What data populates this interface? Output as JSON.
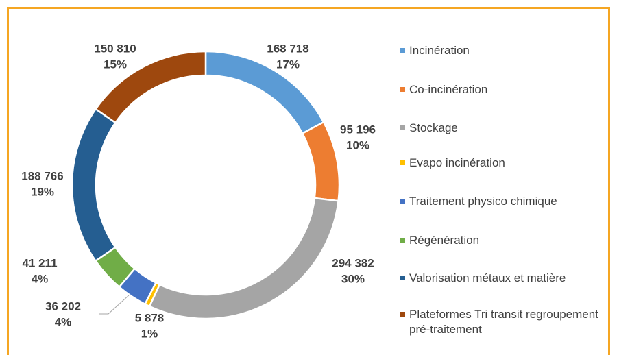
{
  "chart_data": {
    "type": "donut",
    "categories": [
      "Incinération",
      "Co-incinération",
      "Stockage",
      "Evapo incinération",
      "Traitement physico chimique",
      "Régénération",
      "Valorisation métaux et matière",
      "Plateformes Tri transit regroupement pré-traitement"
    ],
    "values": [
      168718,
      95196,
      294382,
      5878,
      36202,
      41211,
      188766,
      150810
    ],
    "value_labels": [
      "168 718",
      "95 196",
      "294 382",
      "5 878",
      "36 202",
      "41 211",
      "188 766",
      "150 810"
    ],
    "percent_labels": [
      "17%",
      "10%",
      "30%",
      "1%",
      "4%",
      "4%",
      "19%",
      "15%"
    ],
    "colors": [
      "#5b9bd5",
      "#ed7d31",
      "#a5a5a5",
      "#ffc000",
      "#4472c4",
      "#70ad47",
      "#255e91",
      "#9e480e"
    ],
    "legend": "right"
  }
}
